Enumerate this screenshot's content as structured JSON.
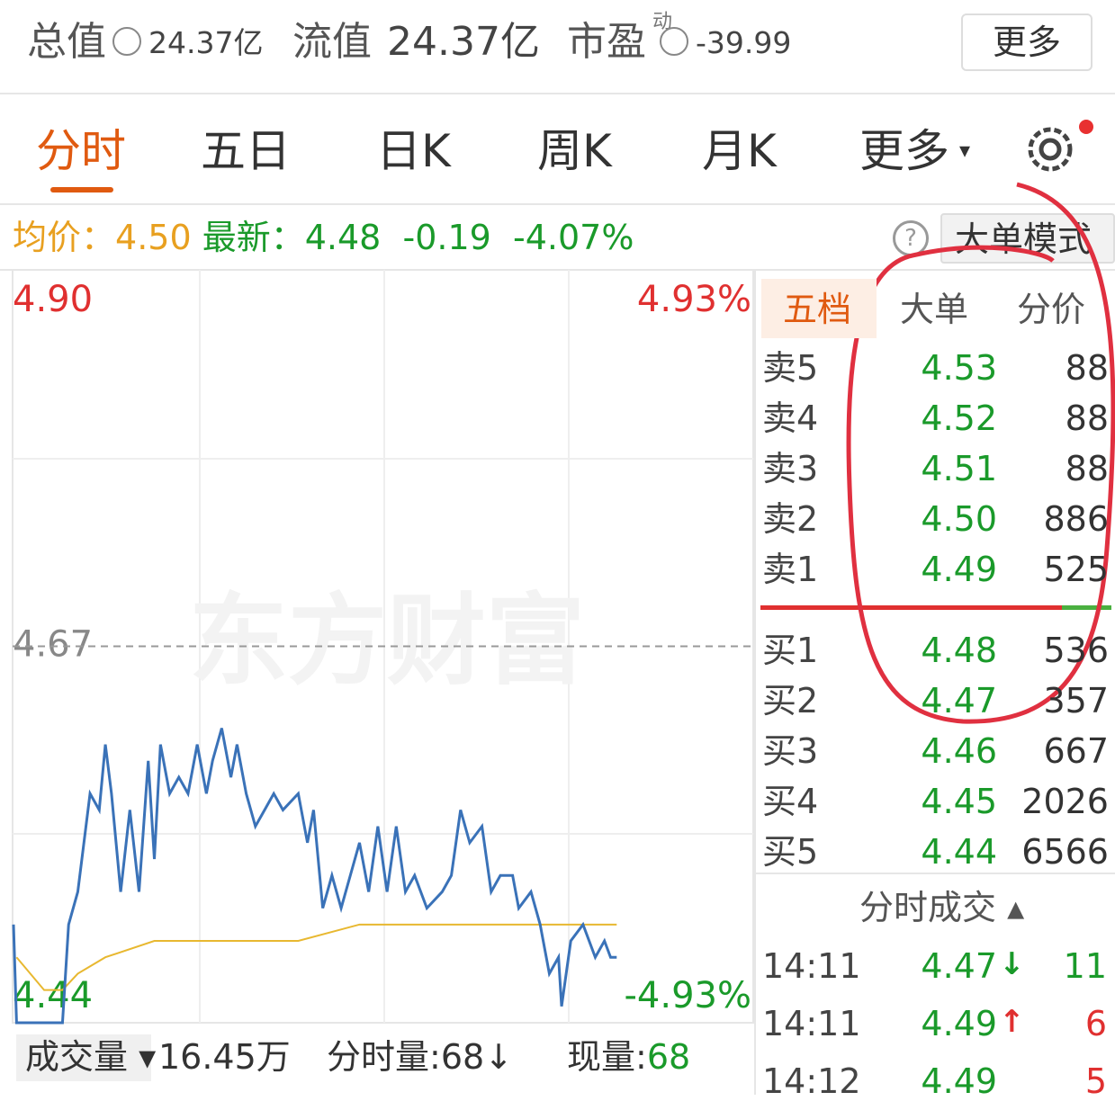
{
  "header": {
    "items": [
      {
        "label": "总值",
        "value": "24.37亿"
      },
      {
        "label": "流值",
        "value": "24.37亿"
      },
      {
        "label": "市盈",
        "sup": "动",
        "value": "-39.99"
      }
    ],
    "button": "更多"
  },
  "tabs": [
    "分时",
    "五日",
    "日K",
    "周K",
    "月K",
    "更多"
  ],
  "quote": {
    "avg_label": "均价：",
    "avg": "4.50",
    "last_label": "最新：",
    "last": "4.48",
    "change": "-0.19",
    "pct": "-4.07%",
    "button": "大单模式"
  },
  "chart_data": {
    "type": "line",
    "watermark": "东方财富",
    "xlim": [
      0,
      241
    ],
    "ylim": [
      4.44,
      4.9
    ],
    "yticks": [
      {
        "value": 4.9,
        "label": "4.90"
      },
      4.67,
      4.44
    ],
    "pct_labels": [
      "4.93%",
      "-4.93%"
    ],
    "series": [
      {
        "color": "#3a72b8",
        "x": [
          0,
          1,
          16,
          18,
          21,
          25,
          28,
          30,
          32,
          35,
          38,
          41,
          44,
          46,
          48,
          51,
          54,
          57,
          60,
          63,
          65,
          68,
          71,
          73,
          76,
          79,
          82,
          85,
          88,
          93,
          96,
          98,
          101,
          104,
          107,
          110,
          113,
          116,
          119,
          122,
          125,
          128,
          131,
          135,
          140,
          143,
          146,
          149,
          153,
          156,
          159,
          163,
          165,
          169,
          172,
          175,
          178,
          179,
          182,
          186,
          190,
          193,
          195,
          197
        ],
        "values": [
          4.5,
          4.44,
          4.44,
          4.5,
          4.52,
          4.58,
          4.57,
          4.61,
          4.58,
          4.52,
          4.57,
          4.52,
          4.6,
          4.54,
          4.61,
          4.58,
          4.59,
          4.58,
          4.61,
          4.58,
          4.6,
          4.62,
          4.59,
          4.61,
          4.58,
          4.56,
          4.57,
          4.58,
          4.57,
          4.58,
          4.55,
          4.57,
          4.51,
          4.53,
          4.51,
          4.53,
          4.55,
          4.52,
          4.56,
          4.52,
          4.56,
          4.52,
          4.53,
          4.51,
          4.52,
          4.53,
          4.57,
          4.55,
          4.56,
          4.52,
          4.53,
          4.53,
          4.51,
          4.52,
          4.5,
          4.47,
          4.48,
          4.45,
          4.49,
          4.5,
          4.48,
          4.49,
          4.48,
          4.48
        ]
      },
      {
        "color": "#e8b830",
        "x": [
          1,
          10,
          16,
          21,
          30,
          46,
          68,
          93,
          113,
          172,
          197
        ],
        "values": [
          4.48,
          4.46,
          4.46,
          4.47,
          4.48,
          4.49,
          4.49,
          4.49,
          4.5,
          4.5,
          4.5
        ]
      }
    ]
  },
  "book": {
    "tabs": [
      "五档",
      "大单",
      "分价"
    ],
    "asks": [
      {
        "label": "卖5",
        "price": "4.53",
        "vol": "88"
      },
      {
        "label": "卖4",
        "price": "4.52",
        "vol": "88"
      },
      {
        "label": "卖3",
        "price": "4.51",
        "vol": "88"
      },
      {
        "label": "卖2",
        "price": "4.50",
        "vol": "886"
      },
      {
        "label": "卖1",
        "price": "4.49",
        "vol": "525"
      }
    ],
    "bids": [
      {
        "label": "买1",
        "price": "4.48",
        "vol": "536"
      },
      {
        "label": "买2",
        "price": "4.47",
        "vol": "357"
      },
      {
        "label": "买3",
        "price": "4.46",
        "vol": "667"
      },
      {
        "label": "买4",
        "price": "4.45",
        "vol": "2026"
      },
      {
        "label": "买5",
        "price": "4.44",
        "vol": "6566"
      }
    ]
  },
  "trades": {
    "title": "分时成交",
    "rows": [
      {
        "time": "14:11",
        "price": "4.47",
        "dir": "↓",
        "vol": "11"
      },
      {
        "time": "14:11",
        "price": "4.49",
        "dir": "↑",
        "vol": "6"
      },
      {
        "time": "14:12",
        "price": "4.49",
        "dir": "",
        "vol": "5"
      }
    ]
  },
  "footer": {
    "volume_label": "成交量",
    "volume": "16.45万",
    "tick_label": "分时量:",
    "tick": "68",
    "tick_dir": "↓",
    "now_label": "现量:",
    "now": "68"
  }
}
